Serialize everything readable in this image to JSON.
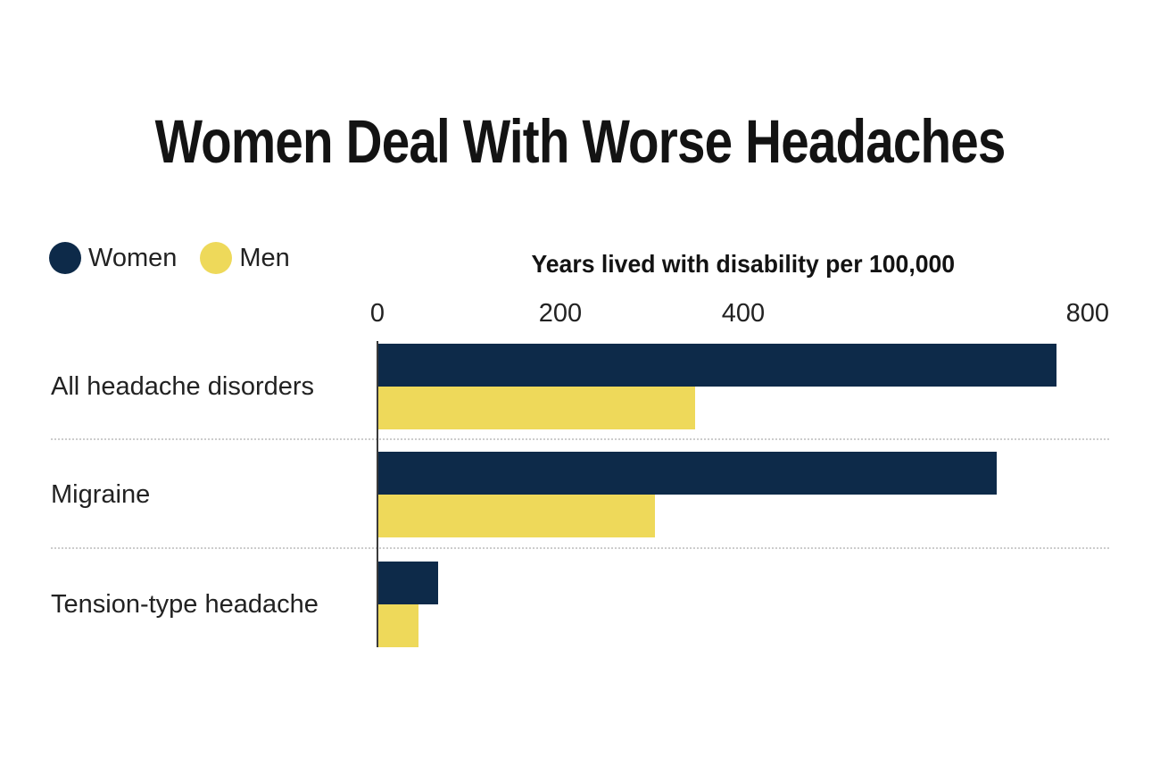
{
  "page": {
    "background_color": "#ffffff"
  },
  "header": {
    "title": "Women Deal With Worse Headaches"
  },
  "legend": {
    "items": [
      {
        "label": "Women",
        "color": "#0d2a49"
      },
      {
        "label": "Men",
        "color": "#eed95a"
      }
    ]
  },
  "chart_data": {
    "type": "bar",
    "orientation": "horizontal",
    "title": "Women Deal With Worse Headaches",
    "axis_title": "Years lived with disability per 100,000",
    "categories": [
      "All headache disorders",
      "Migraine",
      "Tension-type headache"
    ],
    "series": [
      {
        "name": "Women",
        "color": "#0d2a49",
        "values": [
          742,
          677,
          66
        ]
      },
      {
        "name": "Men",
        "color": "#eed95a",
        "values": [
          347,
          303,
          45
        ]
      }
    ],
    "xlim": [
      0,
      800
    ],
    "xticks": [
      0,
      200,
      400,
      800
    ],
    "grid": false,
    "legend_position": "top-left"
  }
}
